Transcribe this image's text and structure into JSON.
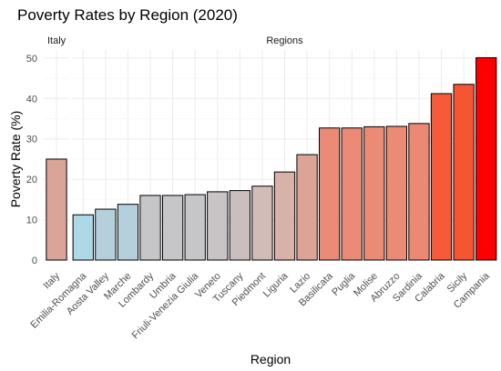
{
  "chart_data": {
    "type": "bar",
    "title": "Poverty Rates by Region (2020)",
    "xlabel": "Region",
    "ylabel": "Poverty Rate (%)",
    "ylim": [
      0,
      52
    ],
    "yticks": [
      0,
      10,
      20,
      30,
      40,
      50
    ],
    "grid": true,
    "facets": [
      {
        "label": "Italy",
        "categories": [
          "Italy"
        ],
        "values": [
          25.0
        ],
        "colors": [
          "#dca398"
        ]
      },
      {
        "label": "Regions",
        "categories": [
          "Emilia-Romagna",
          "Aosta Valley",
          "Marche",
          "Lombardy",
          "Umbria",
          "Friuli-Venezia Giulia",
          "Veneto",
          "Tuscany",
          "Piedmont",
          "Liguria",
          "Lazio",
          "Basilicata",
          "Puglia",
          "Molise",
          "Abruzzo",
          "Sardinia",
          "Calabria",
          "Sicily",
          "Campania"
        ],
        "values": [
          11.2,
          12.6,
          13.8,
          16.0,
          16.0,
          16.2,
          16.9,
          17.2,
          18.3,
          21.8,
          26.1,
          32.7,
          32.7,
          33.0,
          33.1,
          33.8,
          41.2,
          43.5,
          50.1
        ],
        "colors": [
          "#add8e6",
          "#b6cfdc",
          "#b6cfdc",
          "#c6c6c9",
          "#c6c6c9",
          "#c6c6c9",
          "#c8c4c6",
          "#cabebe",
          "#d1bcb8",
          "#d8b1a9",
          "#dca497",
          "#eb8b76",
          "#eb8b76",
          "#eb8b76",
          "#eb8b76",
          "#ec8873",
          "#f65a38",
          "#f65534",
          "#ff0000"
        ]
      }
    ]
  }
}
